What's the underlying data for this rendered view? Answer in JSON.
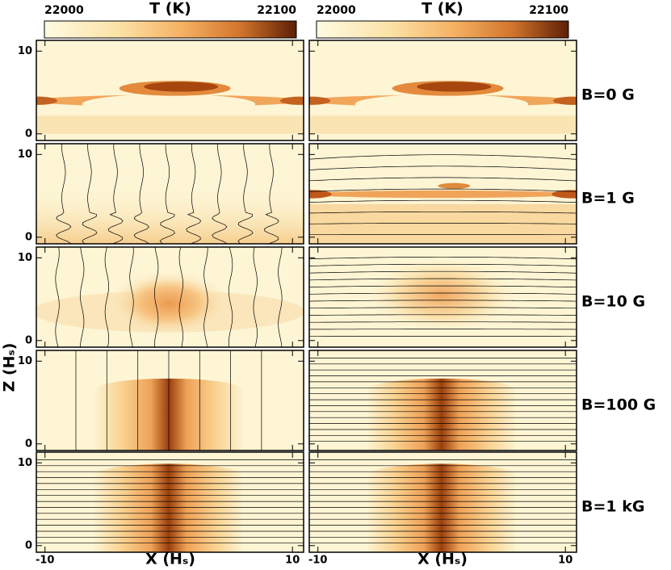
{
  "chart_data": {
    "type": "heatmap",
    "colorbar": {
      "label": "T (K)",
      "min": 22000,
      "max": 22100
    },
    "xlabel": "X (Hₛ)",
    "ylabel": "Z (Hₛ)",
    "xlim": [
      -10.7,
      10.9
    ],
    "xticks": [
      -10,
      10
    ],
    "ylim": [
      -0.8,
      11.3
    ],
    "yticks": [
      0,
      10
    ],
    "rows": [
      "B=0 G",
      "B=1 G",
      "B=10 G",
      "B=100 G",
      "B=1 kG"
    ]
  }
}
